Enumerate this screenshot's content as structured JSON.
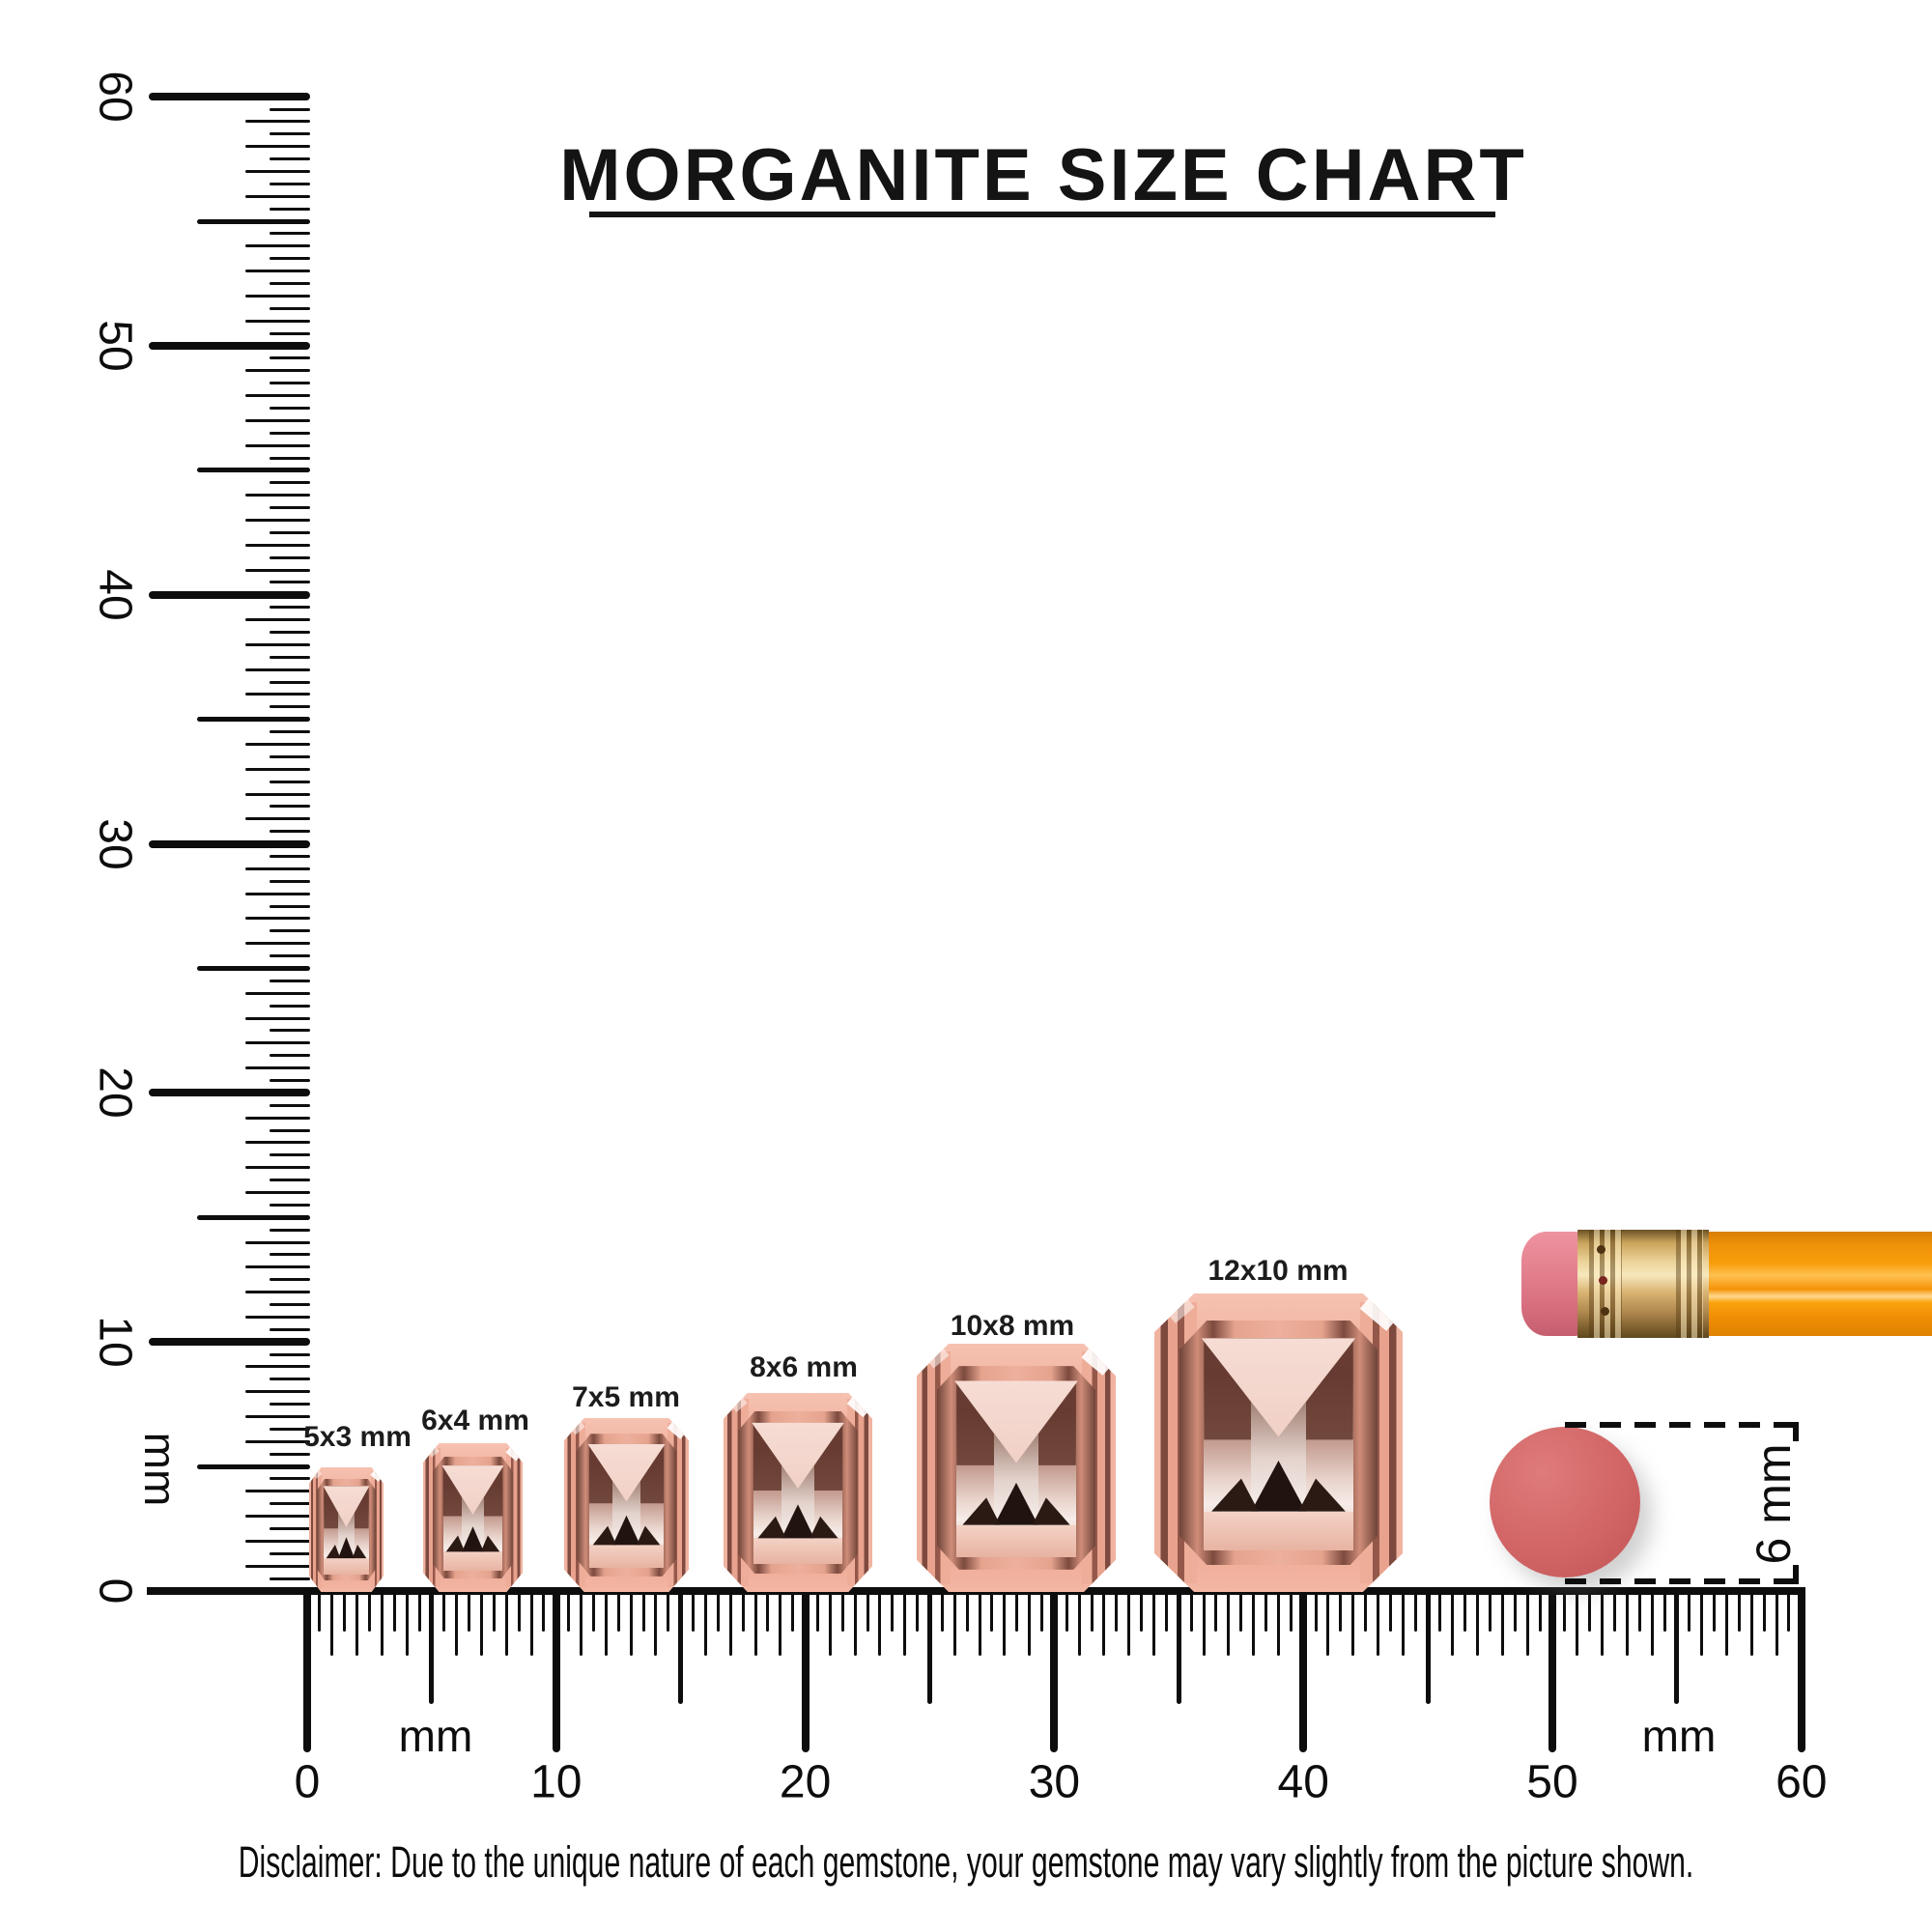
{
  "title": {
    "text": "MORGANITE SIZE CHART"
  },
  "vertical_ruler": {
    "unit_label": "mm",
    "tick_labels": [
      "0",
      "10",
      "20",
      "30",
      "40",
      "50",
      "60"
    ]
  },
  "horizontal_ruler": {
    "unit_label_left": "mm",
    "unit_label_right": "mm",
    "tick_labels": [
      "0",
      "10",
      "20",
      "30",
      "40",
      "50",
      "60"
    ]
  },
  "gems": [
    {
      "label": "5x3 mm",
      "length_mm": 5,
      "width_mm": 3
    },
    {
      "label": "6x4 mm",
      "length_mm": 6,
      "width_mm": 4
    },
    {
      "label": "7x5 mm",
      "length_mm": 7,
      "width_mm": 5
    },
    {
      "label": "8x6 mm",
      "length_mm": 8,
      "width_mm": 6
    },
    {
      "label": "10x8 mm",
      "length_mm": 10,
      "width_mm": 8
    },
    {
      "label": "12x10 mm",
      "length_mm": 12,
      "width_mm": 10
    }
  ],
  "reference_objects": {
    "eraser_dot_dimension": "6 mm"
  },
  "disclaimer": {
    "text": "Disclaimer: Due to the unique nature of each gemstone, your gemstone may vary slightly from the picture shown."
  },
  "colors": {
    "gem_pink": "#eba692",
    "gem_dark": "#6e4338",
    "ink": "#0d0d0d",
    "eraser_dot": "#d26566",
    "pencil_orange": "#f89d0a",
    "pencil_ferrule_gold": "#ecd49b",
    "pencil_eraser_pink": "#e37f8d"
  }
}
